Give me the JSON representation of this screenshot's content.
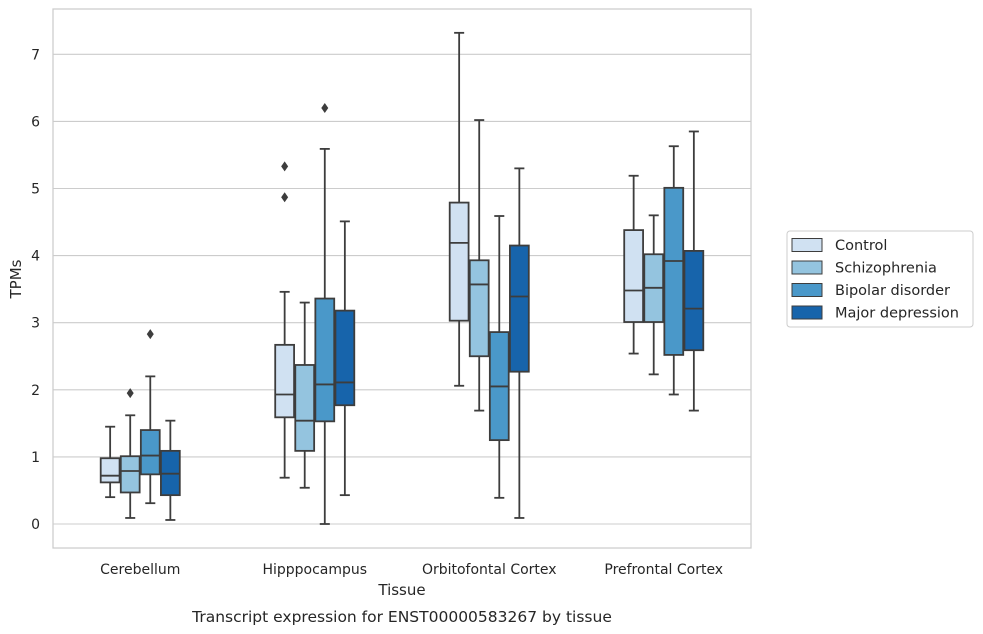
{
  "caption": "Transcript expression for ENST00000583267 by tissue",
  "chart_data": {
    "type": "box",
    "title": "",
    "xlabel": "Tissue",
    "ylabel": "TPMs",
    "ylim": [
      -0.35,
      7.7
    ],
    "yticks": [
      0,
      1,
      2,
      3,
      4,
      5,
      6,
      7
    ],
    "grid": "y",
    "legend_position": "right",
    "categories": [
      "Cerebellum",
      "Hipppocampus",
      "Orbitofontal Cortex",
      "Prefrontal Cortex"
    ],
    "series": [
      {
        "name": "Control",
        "color": "#d0e1f2",
        "boxes": [
          {
            "whisker_low": 0.4,
            "q1": 0.62,
            "median": 0.72,
            "q3": 0.98,
            "whisker_high": 1.45,
            "outliers": []
          },
          {
            "whisker_low": 0.69,
            "q1": 1.59,
            "median": 1.93,
            "q3": 2.67,
            "whisker_high": 3.46,
            "outliers": [
              4.87,
              5.33
            ]
          },
          {
            "whisker_low": 2.06,
            "q1": 3.03,
            "median": 4.19,
            "q3": 4.79,
            "whisker_high": 7.32,
            "outliers": []
          },
          {
            "whisker_low": 2.54,
            "q1": 3.01,
            "median": 3.48,
            "q3": 4.38,
            "whisker_high": 5.19,
            "outliers": []
          }
        ]
      },
      {
        "name": "Schizophrenia",
        "color": "#94c4df",
        "boxes": [
          {
            "whisker_low": 0.09,
            "q1": 0.47,
            "median": 0.79,
            "q3": 1.01,
            "whisker_high": 1.62,
            "outliers": [
              1.95
            ]
          },
          {
            "whisker_low": 0.54,
            "q1": 1.09,
            "median": 1.54,
            "q3": 2.37,
            "whisker_high": 3.3,
            "outliers": []
          },
          {
            "whisker_low": 1.69,
            "q1": 2.5,
            "median": 3.57,
            "q3": 3.93,
            "whisker_high": 6.02,
            "outliers": []
          },
          {
            "whisker_low": 2.23,
            "q1": 3.01,
            "median": 3.52,
            "q3": 4.02,
            "whisker_high": 4.6,
            "outliers": []
          }
        ]
      },
      {
        "name": "Bipolar disorder",
        "color": "#4a98c9",
        "boxes": [
          {
            "whisker_low": 0.31,
            "q1": 0.74,
            "median": 1.02,
            "q3": 1.4,
            "whisker_high": 2.2,
            "outliers": [
              2.83
            ]
          },
          {
            "whisker_low": 0.0,
            "q1": 1.53,
            "median": 2.08,
            "q3": 3.36,
            "whisker_high": 5.59,
            "outliers": [
              6.2
            ]
          },
          {
            "whisker_low": 0.39,
            "q1": 1.25,
            "median": 2.05,
            "q3": 2.86,
            "whisker_high": 4.59,
            "outliers": []
          },
          {
            "whisker_low": 1.93,
            "q1": 2.52,
            "median": 3.92,
            "q3": 5.01,
            "whisker_high": 5.63,
            "outliers": []
          }
        ]
      },
      {
        "name": "Major depression",
        "color": "#1764ab",
        "boxes": [
          {
            "whisker_low": 0.06,
            "q1": 0.43,
            "median": 0.75,
            "q3": 1.09,
            "whisker_high": 1.54,
            "outliers": []
          },
          {
            "whisker_low": 0.43,
            "q1": 1.77,
            "median": 2.11,
            "q3": 3.18,
            "whisker_high": 4.51,
            "outliers": []
          },
          {
            "whisker_low": 0.09,
            "q1": 2.27,
            "median": 3.39,
            "q3": 4.15,
            "whisker_high": 5.3,
            "outliers": []
          },
          {
            "whisker_low": 1.69,
            "q1": 2.59,
            "median": 3.21,
            "q3": 4.07,
            "whisker_high": 5.85,
            "outliers": []
          }
        ]
      }
    ]
  }
}
